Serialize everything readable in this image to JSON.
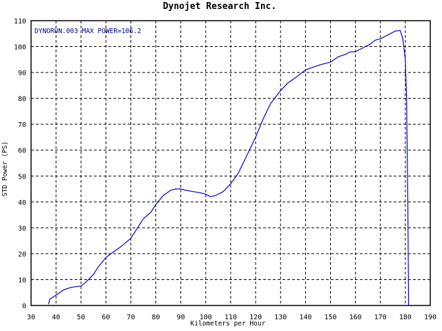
{
  "chart_data": {
    "type": "line",
    "title": "Dynojet  Research  Inc.",
    "annotation": "DYNORUN.003  MAX POWER=106.2",
    "xlabel": "Kilometers per Hour",
    "ylabel": "STD Power (PS)",
    "xlim": [
      30,
      190
    ],
    "ylim": [
      0,
      110
    ],
    "xticks": [
      30,
      40,
      50,
      60,
      70,
      80,
      90,
      100,
      110,
      120,
      130,
      140,
      150,
      160,
      170,
      180,
      190
    ],
    "yticks": [
      0,
      10,
      20,
      30,
      40,
      50,
      60,
      70,
      80,
      90,
      100,
      110
    ],
    "grid": true,
    "series": [
      {
        "color": "#0000cc",
        "x": [
          37,
          37.5,
          40,
          43,
          46,
          50,
          52,
          55,
          57,
          60,
          62,
          65,
          67,
          70,
          72,
          75,
          78,
          80,
          83,
          86,
          88,
          90,
          92,
          95,
          98,
          100,
          102,
          104,
          107,
          110,
          113,
          116,
          120,
          123,
          126,
          130,
          133,
          136,
          140,
          143,
          146,
          150,
          153,
          156,
          158,
          160,
          163,
          166,
          168,
          170,
          172,
          174,
          176,
          178,
          179,
          180,
          180.5,
          181,
          181.3
        ],
        "values": [
          0.5,
          2.5,
          4,
          6,
          7,
          7.5,
          9,
          12,
          15,
          18.5,
          20,
          22,
          23.5,
          26,
          29,
          33.5,
          36,
          39,
          42.5,
          44.5,
          45,
          45,
          44.5,
          44,
          43.5,
          43,
          42,
          42.5,
          44,
          47,
          51,
          57,
          65,
          72,
          78,
          83,
          86,
          88,
          91,
          92,
          93,
          94,
          96,
          97,
          98,
          98,
          99.5,
          101,
          102.5,
          103,
          104,
          105,
          106,
          106.2,
          103,
          95,
          80,
          40,
          0
        ]
      }
    ]
  }
}
